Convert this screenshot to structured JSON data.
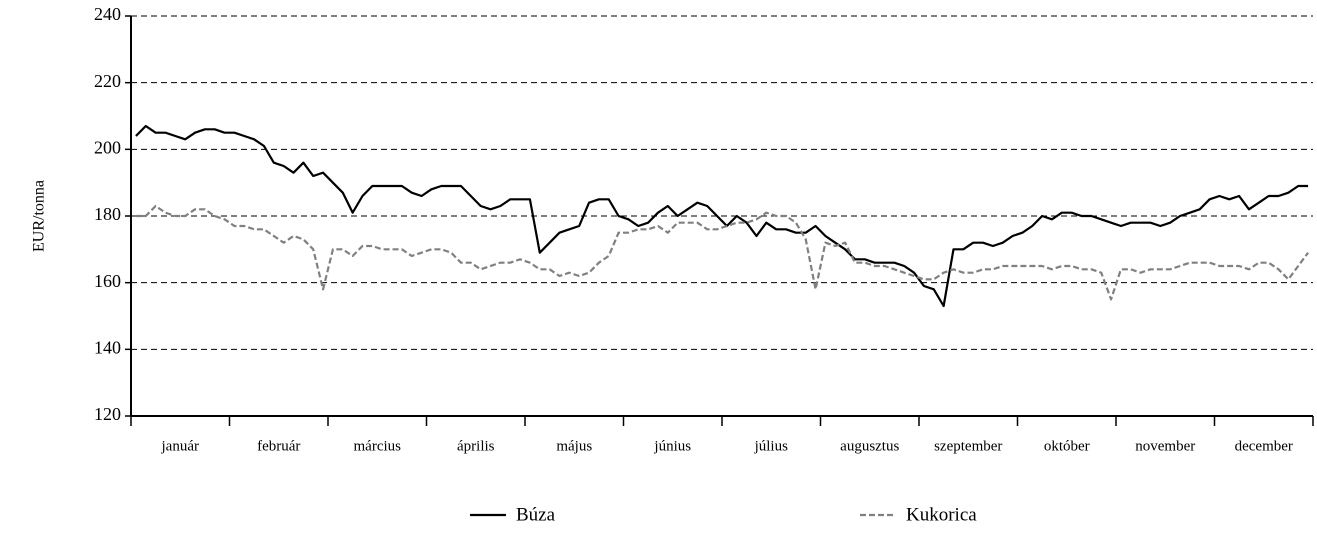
{
  "chart_data": {
    "type": "line",
    "y_label": "EUR/tonna",
    "categories": [
      null,
      null,
      null,
      null,
      "január",
      null,
      null,
      null,
      null,
      null,
      null,
      null,
      null,
      null,
      "február",
      null,
      null,
      null,
      null,
      null,
      null,
      null,
      null,
      null,
      "március",
      null,
      null,
      null,
      null,
      null,
      null,
      null,
      null,
      null,
      "április",
      null,
      null,
      null,
      null,
      null,
      null,
      null,
      null,
      null,
      "május",
      null,
      null,
      null,
      null,
      null,
      null,
      null,
      null,
      null,
      "június",
      null,
      null,
      null,
      null,
      null,
      null,
      null,
      null,
      null,
      "július",
      null,
      null,
      null,
      null,
      null,
      null,
      null,
      null,
      null,
      "augusztus",
      null,
      null,
      null,
      null,
      null,
      null,
      null,
      null,
      null,
      "szeptember",
      null,
      null,
      null,
      null,
      null,
      null,
      null,
      null,
      null,
      "október",
      null,
      null,
      null,
      null,
      null,
      null,
      null,
      null,
      null,
      "november",
      null,
      null,
      null,
      null,
      null,
      null,
      null,
      null,
      null,
      "december",
      null,
      null,
      null,
      null,
      null
    ],
    "series": [
      {
        "name": "Búza",
        "color": "#000000",
        "dash": false,
        "values": [
          204,
          207,
          205,
          205,
          204,
          203,
          205,
          206,
          206,
          205,
          205,
          204,
          203,
          201,
          196,
          195,
          193,
          196,
          192,
          193,
          190,
          187,
          181,
          186,
          189,
          189,
          189,
          189,
          187,
          186,
          188,
          189,
          189,
          189,
          186,
          183,
          182,
          183,
          185,
          185,
          185,
          169,
          172,
          175,
          176,
          177,
          184,
          185,
          185,
          180,
          179,
          177,
          178,
          181,
          183,
          180,
          182,
          184,
          183,
          180,
          177,
          180,
          178,
          174,
          178,
          176,
          176,
          175,
          175,
          177,
          174,
          172,
          170,
          167,
          167,
          166,
          166,
          166,
          165,
          163,
          159,
          158,
          153,
          170,
          170,
          172,
          172,
          171,
          172,
          174,
          175,
          177,
          180,
          179,
          181,
          181,
          180,
          180,
          179,
          178,
          177,
          178,
          178,
          178,
          177,
          178,
          180,
          181,
          182,
          185,
          186,
          185,
          186,
          182,
          184,
          186,
          186,
          187,
          189,
          189
        ]
      },
      {
        "name": "Kukorica",
        "color": "#808080",
        "dash": true,
        "values": [
          180,
          180,
          183,
          181,
          180,
          180,
          182,
          182,
          180,
          179,
          177,
          177,
          176,
          176,
          174,
          172,
          174,
          173,
          170,
          158,
          170,
          170,
          168,
          171,
          171,
          170,
          170,
          170,
          168,
          169,
          170,
          170,
          169,
          166,
          166,
          164,
          165,
          166,
          166,
          167,
          166,
          164,
          164,
          162,
          163,
          162,
          163,
          166,
          168,
          175,
          175,
          176,
          176,
          177,
          175,
          178,
          178,
          178,
          176,
          176,
          177,
          178,
          178,
          179,
          181,
          180,
          180,
          178,
          173,
          158,
          172,
          171,
          172,
          166,
          166,
          165,
          165,
          164,
          163,
          162,
          161,
          161,
          163,
          164,
          163,
          163,
          164,
          164,
          165,
          165,
          165,
          165,
          165,
          164,
          165,
          165,
          164,
          164,
          163,
          155,
          164,
          164,
          163,
          164,
          164,
          164,
          165,
          166,
          166,
          166,
          165,
          165,
          165,
          164,
          166,
          166,
          164,
          161,
          165,
          169
        ]
      }
    ],
    "ylim": [
      120,
      240
    ],
    "yticks": [
      120,
      140,
      160,
      180,
      200,
      220,
      240
    ],
    "grid": true,
    "legend": "bottom"
  }
}
